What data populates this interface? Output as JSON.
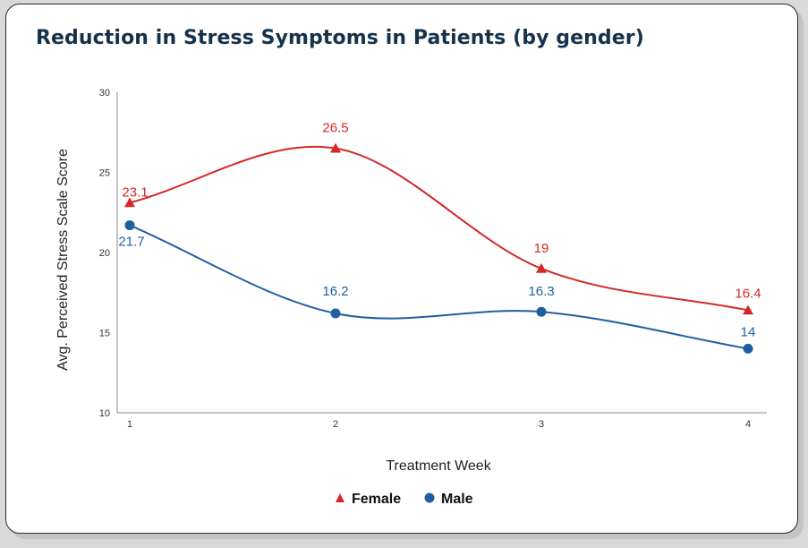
{
  "chart_data": {
    "type": "line",
    "title": "Reduction in Stress Symptoms in Patients (by gender)",
    "xlabel": "Treatment Week",
    "ylabel": "Avg. Perceived Stress Scale Score",
    "categories": [
      "1",
      "2",
      "3",
      "4"
    ],
    "ylim": [
      10,
      30
    ],
    "yticks": [
      "10",
      "15",
      "20",
      "25",
      "30"
    ],
    "grid": false,
    "legend_position": "bottom-center",
    "series": [
      {
        "name": "Female",
        "values": [
          23.1,
          26.5,
          19,
          16.4
        ],
        "labels": [
          "23.1",
          "26.5",
          "19",
          "16.4"
        ],
        "color": "#d62728",
        "marker": "triangle"
      },
      {
        "name": "Male",
        "values": [
          21.7,
          16.2,
          16.3,
          14
        ],
        "labels": [
          "21.7",
          "16.2",
          "16.3",
          "14"
        ],
        "color": "#1f5fa0",
        "marker": "circle"
      }
    ]
  }
}
